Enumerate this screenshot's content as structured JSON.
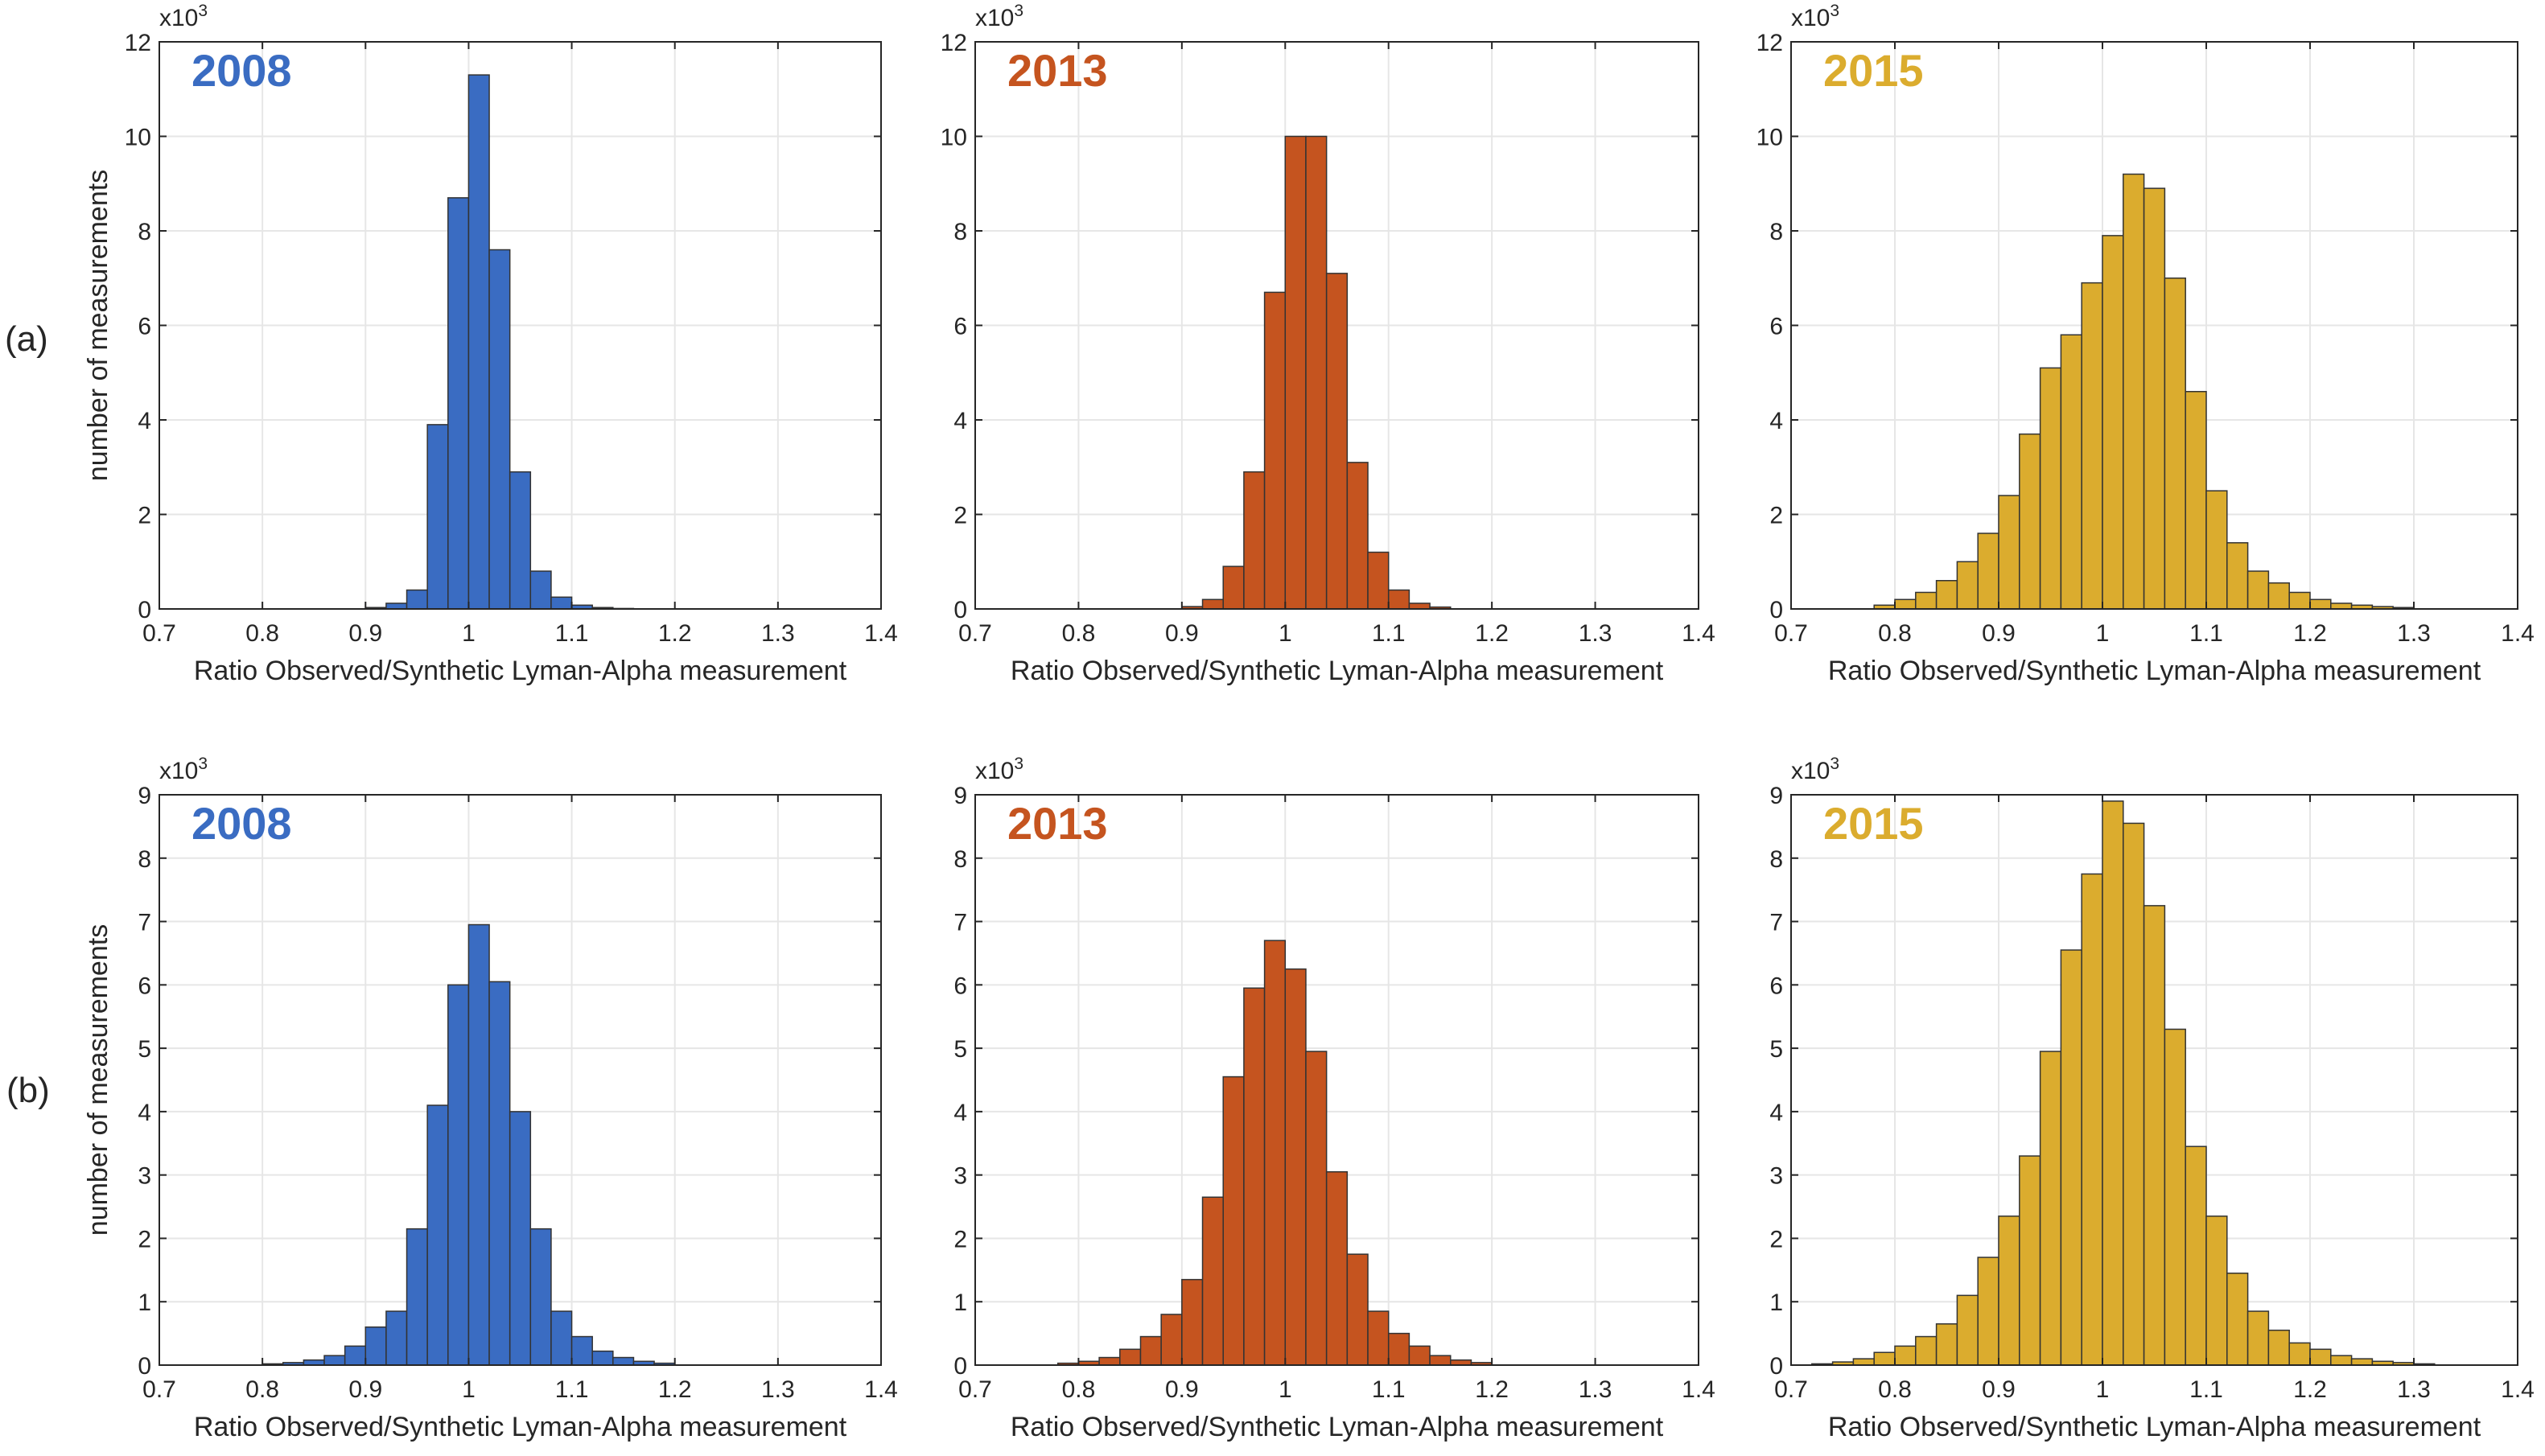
{
  "row_labels": [
    "(a)",
    "(b)"
  ],
  "chart_data": [
    {
      "type": "bar",
      "row": 0,
      "col": 0,
      "title": "2008",
      "color": "#3a6cc2",
      "xlabel": "Ratio Observed/Synthetic Lyman-Alpha measurement",
      "ylabel": "number of measurements",
      "y_multiplier": "x10",
      "y_multiplier_exp": "3",
      "xlim": [
        0.7,
        1.4
      ],
      "ylim": [
        0,
        12
      ],
      "xticks": [
        0.7,
        0.8,
        0.9,
        1.0,
        1.1,
        1.2,
        1.3,
        1.4
      ],
      "xtick_labels": [
        "0.7",
        "0.8",
        "0.9",
        "1",
        "1.1",
        "1.2",
        "1.3",
        "1.4"
      ],
      "yticks": [
        0,
        2,
        4,
        6,
        8,
        10,
        12
      ],
      "bin_start": 0.9,
      "bin_width": 0.02,
      "values": [
        0.03,
        0.12,
        0.4,
        3.9,
        8.7,
        11.3,
        7.6,
        2.9,
        0.8,
        0.25,
        0.08,
        0.03,
        0.01
      ]
    },
    {
      "type": "bar",
      "row": 0,
      "col": 1,
      "title": "2013",
      "color": "#c5541f",
      "xlabel": "Ratio Observed/Synthetic Lyman-Alpha measurement",
      "ylabel": "",
      "y_multiplier": "x10",
      "y_multiplier_exp": "3",
      "xlim": [
        0.7,
        1.4
      ],
      "ylim": [
        0,
        12
      ],
      "xticks": [
        0.7,
        0.8,
        0.9,
        1.0,
        1.1,
        1.2,
        1.3,
        1.4
      ],
      "xtick_labels": [
        "0.7",
        "0.8",
        "0.9",
        "1",
        "1.1",
        "1.2",
        "1.3",
        "1.4"
      ],
      "yticks": [
        0,
        2,
        4,
        6,
        8,
        10,
        12
      ],
      "bin_start": 0.9,
      "bin_width": 0.02,
      "values": [
        0.05,
        0.2,
        0.9,
        2.9,
        6.7,
        10.0,
        10.0,
        7.1,
        3.1,
        1.2,
        0.4,
        0.12,
        0.04
      ]
    },
    {
      "type": "bar",
      "row": 0,
      "col": 2,
      "title": "2015",
      "color": "#dbac2e",
      "xlabel": "Ratio Observed/Synthetic Lyman-Alpha measurement",
      "ylabel": "",
      "y_multiplier": "x10",
      "y_multiplier_exp": "3",
      "xlim": [
        0.7,
        1.4
      ],
      "ylim": [
        0,
        12
      ],
      "xticks": [
        0.7,
        0.8,
        0.9,
        1.0,
        1.1,
        1.2,
        1.3,
        1.4
      ],
      "xtick_labels": [
        "0.7",
        "0.8",
        "0.9",
        "1",
        "1.1",
        "1.2",
        "1.3",
        "1.4"
      ],
      "yticks": [
        0,
        2,
        4,
        6,
        8,
        10,
        12
      ],
      "bin_start": 0.78,
      "bin_width": 0.02,
      "values": [
        0.08,
        0.2,
        0.35,
        0.6,
        1.0,
        1.6,
        2.4,
        3.7,
        5.1,
        5.8,
        6.9,
        7.9,
        9.2,
        8.9,
        7.0,
        4.6,
        2.5,
        1.4,
        0.8,
        0.55,
        0.35,
        0.2,
        0.12,
        0.08,
        0.05,
        0.03
      ]
    },
    {
      "type": "bar",
      "row": 1,
      "col": 0,
      "title": "2008",
      "color": "#3a6cc2",
      "xlabel": "Ratio Observed/Synthetic Lyman-Alpha measurement",
      "ylabel": "number of measurements",
      "y_multiplier": "x10",
      "y_multiplier_exp": "3",
      "xlim": [
        0.7,
        1.4
      ],
      "ylim": [
        0,
        9
      ],
      "xticks": [
        0.7,
        0.8,
        0.9,
        1.0,
        1.1,
        1.2,
        1.3,
        1.4
      ],
      "xtick_labels": [
        "0.7",
        "0.8",
        "0.9",
        "1",
        "1.1",
        "1.2",
        "1.3",
        "1.4"
      ],
      "yticks": [
        0,
        1,
        2,
        3,
        4,
        5,
        6,
        7,
        8,
        9
      ],
      "bin_start": 0.8,
      "bin_width": 0.02,
      "values": [
        0.02,
        0.04,
        0.08,
        0.15,
        0.3,
        0.6,
        0.85,
        2.15,
        4.1,
        6.0,
        6.95,
        6.05,
        4.0,
        2.15,
        0.85,
        0.45,
        0.22,
        0.12,
        0.06,
        0.03
      ]
    },
    {
      "type": "bar",
      "row": 1,
      "col": 1,
      "title": "2013",
      "color": "#c5541f",
      "xlabel": "Ratio Observed/Synthetic Lyman-Alpha measurement",
      "ylabel": "",
      "y_multiplier": "x10",
      "y_multiplier_exp": "3",
      "xlim": [
        0.7,
        1.4
      ],
      "ylim": [
        0,
        9
      ],
      "xticks": [
        0.7,
        0.8,
        0.9,
        1.0,
        1.1,
        1.2,
        1.3,
        1.4
      ],
      "xtick_labels": [
        "0.7",
        "0.8",
        "0.9",
        "1",
        "1.1",
        "1.2",
        "1.3",
        "1.4"
      ],
      "yticks": [
        0,
        1,
        2,
        3,
        4,
        5,
        6,
        7,
        8,
        9
      ],
      "bin_start": 0.78,
      "bin_width": 0.02,
      "values": [
        0.03,
        0.06,
        0.12,
        0.25,
        0.45,
        0.8,
        1.35,
        2.65,
        4.55,
        5.95,
        6.7,
        6.25,
        4.95,
        3.05,
        1.75,
        0.85,
        0.5,
        0.3,
        0.15,
        0.08,
        0.04
      ]
    },
    {
      "type": "bar",
      "row": 1,
      "col": 2,
      "title": "2015",
      "color": "#dbac2e",
      "xlabel": "Ratio Observed/Synthetic Lyman-Alpha measurement",
      "ylabel": "",
      "y_multiplier": "x10",
      "y_multiplier_exp": "3",
      "xlim": [
        0.7,
        1.4
      ],
      "ylim": [
        0,
        9
      ],
      "xticks": [
        0.7,
        0.8,
        0.9,
        1.0,
        1.1,
        1.2,
        1.3,
        1.4
      ],
      "xtick_labels": [
        "0.7",
        "0.8",
        "0.9",
        "1",
        "1.1",
        "1.2",
        "1.3",
        "1.4"
      ],
      "yticks": [
        0,
        1,
        2,
        3,
        4,
        5,
        6,
        7,
        8,
        9
      ],
      "bin_start": 0.72,
      "bin_width": 0.02,
      "values": [
        0.02,
        0.05,
        0.1,
        0.2,
        0.3,
        0.45,
        0.65,
        1.1,
        1.7,
        2.35,
        3.3,
        4.95,
        6.55,
        7.75,
        8.9,
        8.55,
        7.25,
        5.3,
        3.45,
        2.35,
        1.45,
        0.85,
        0.55,
        0.35,
        0.25,
        0.15,
        0.1,
        0.06,
        0.04,
        0.02
      ]
    }
  ]
}
